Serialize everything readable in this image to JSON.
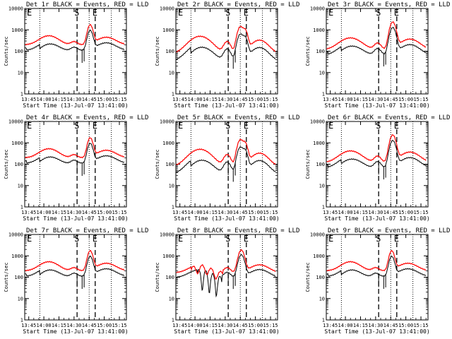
{
  "chart_data": {
    "type": "line",
    "panels": [
      {
        "title": "Det 1r BLACK = Events, RED = LLD",
        "variant": 1
      },
      {
        "title": "Det 2r BLACK = Events, RED = LLD",
        "variant": 2
      },
      {
        "title": "Det 3r BLACK = Events, RED = LLD",
        "variant": 3
      },
      {
        "title": "Det 4r BLACK = Events, RED = LLD",
        "variant": 1
      },
      {
        "title": "Det 5r BLACK = Events, RED = LLD",
        "variant": 2
      },
      {
        "title": "Det 6r BLACK = Events, RED = LLD",
        "variant": 3
      },
      {
        "title": "Det 7r BLACK = Events, RED = LLD",
        "variant": 1
      },
      {
        "title": "Det 8r BLACK = Events, RED = LLD",
        "variant": 4
      },
      {
        "title": "Det 9r BLACK = Events, RED = LLD",
        "variant": 1
      }
    ],
    "ylabel": "Counts/sec",
    "xlabel": "Start Time (13-Jul-07 13:41:00)",
    "xticks": [
      "13:45",
      "14:00",
      "14:15",
      "14:30",
      "14:45",
      "15:00",
      "15:15"
    ],
    "xtick_minutes": [
      825,
      840,
      855,
      870,
      885,
      900,
      915
    ],
    "xlim_minutes": [
      821,
      922
    ],
    "yticks": [
      "1",
      "10",
      "100",
      "1000",
      "10000"
    ],
    "ylim": [
      1,
      10000
    ],
    "yscale": "log",
    "markers": [
      {
        "label": "E",
        "x_minutes": 821,
        "style": "none"
      },
      {
        "label": "S",
        "x_minutes": 873,
        "style": "dashed"
      },
      {
        "label": "E",
        "x_minutes": 891,
        "style": "dashed"
      }
    ],
    "dotted_lines_minutes": [
      836,
      885,
      907
    ],
    "series": [
      {
        "name": "Events",
        "color": "#000000"
      },
      {
        "name": "LLD",
        "color": "#ff0000"
      }
    ]
  }
}
